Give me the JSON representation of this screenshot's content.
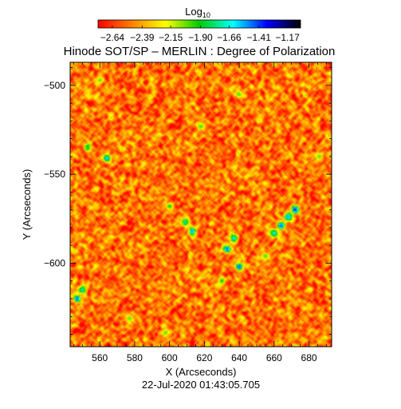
{
  "chart_data": {
    "type": "heatmap",
    "title": "Hinode SOT/SP – MERLIN : Degree of Polarization",
    "subtitle": "22-Jul-2020 01:43:05.705",
    "xlabel": "X (Arcseconds)",
    "ylabel": "Y (Arcseconds)",
    "xlim": [
      543,
      693
    ],
    "ylim": [
      -647,
      -487
    ],
    "x_ticks": [
      560,
      580,
      600,
      620,
      640,
      660,
      680
    ],
    "y_ticks": [
      -500,
      -550,
      -600
    ],
    "colorbar": {
      "label": "Log",
      "label_subscript": "10",
      "range": [
        -2.76,
        -1.06
      ],
      "ticks": [
        -2.64,
        -2.39,
        -2.15,
        -1.9,
        -1.66,
        -1.41,
        -1.17
      ],
      "tick_labels": [
        "−2.64",
        "−2.39",
        "−2.15",
        "−1.90",
        "−1.66",
        "−1.41",
        "−1.17"
      ],
      "colors": [
        "#ff0000",
        "#ff8000",
        "#ffff00",
        "#00cc00",
        "#00ffff",
        "#0000ff",
        "#000000"
      ]
    },
    "grid": false,
    "background_value": -2.5,
    "features": [
      {
        "x": 672,
        "y": -570,
        "value": -1.3
      },
      {
        "x": 668,
        "y": -574,
        "value": -1.5
      },
      {
        "x": 664,
        "y": -579,
        "value": -1.4
      },
      {
        "x": 660,
        "y": -583,
        "value": -1.6
      },
      {
        "x": 613,
        "y": -582,
        "value": -1.5
      },
      {
        "x": 609,
        "y": -577,
        "value": -1.7
      },
      {
        "x": 633,
        "y": -592,
        "value": -1.4
      },
      {
        "x": 637,
        "y": -586,
        "value": -1.6
      },
      {
        "x": 640,
        "y": -602,
        "value": -1.4
      },
      {
        "x": 547,
        "y": -620,
        "value": -1.4
      },
      {
        "x": 550,
        "y": -615,
        "value": -1.7
      },
      {
        "x": 564,
        "y": -541,
        "value": -1.5
      },
      {
        "x": 553,
        "y": -535,
        "value": -1.8
      },
      {
        "x": 600,
        "y": -568,
        "value": -1.9
      },
      {
        "x": 630,
        "y": -610,
        "value": -1.9
      },
      {
        "x": 655,
        "y": -596,
        "value": -2.0
      },
      {
        "x": 686,
        "y": -540,
        "value": -2.0
      },
      {
        "x": 618,
        "y": -523,
        "value": -2.0
      },
      {
        "x": 560,
        "y": -497,
        "value": -2.0
      },
      {
        "x": 577,
        "y": -631,
        "value": -2.0
      },
      {
        "x": 598,
        "y": -639,
        "value": -2.0
      },
      {
        "x": 640,
        "y": -505,
        "value": -2.0
      }
    ]
  }
}
